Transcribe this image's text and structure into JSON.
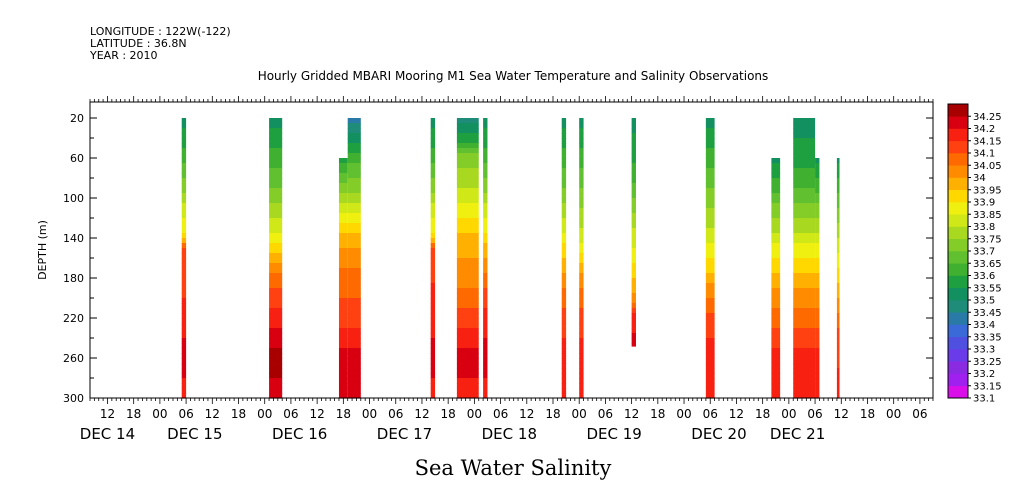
{
  "header": {
    "longitude": "LONGITUDE : 122W(-122)",
    "latitude": "LATITUDE : 36.8N",
    "year": "YEAR : 2010"
  },
  "chart_data": {
    "type": "heatmap",
    "title": "Hourly Gridded MBARI Mooring M1 Sea Water Temperature and Salinity Observations",
    "xlabel": "Sea Water Salinity",
    "ylabel": "DEPTH (m)",
    "y_inverted": true,
    "ylim": [
      300,
      4
    ],
    "y_ticks": [
      20,
      60,
      100,
      140,
      180,
      220,
      260,
      300
    ],
    "xlim_hours": [
      0,
      193
    ],
    "x_hour_ticks": [
      {
        "h": 4,
        "label": "12"
      },
      {
        "h": 10,
        "label": "18"
      },
      {
        "h": 16,
        "label": "00"
      },
      {
        "h": 22,
        "label": "06"
      },
      {
        "h": 28,
        "label": "12"
      },
      {
        "h": 34,
        "label": "18"
      },
      {
        "h": 40,
        "label": "00"
      },
      {
        "h": 46,
        "label": "06"
      },
      {
        "h": 52,
        "label": "12"
      },
      {
        "h": 58,
        "label": "18"
      },
      {
        "h": 64,
        "label": "00"
      },
      {
        "h": 70,
        "label": "06"
      },
      {
        "h": 76,
        "label": "12"
      },
      {
        "h": 82,
        "label": "18"
      },
      {
        "h": 88,
        "label": "00"
      },
      {
        "h": 94,
        "label": "06"
      },
      {
        "h": 100,
        "label": "12"
      },
      {
        "h": 106,
        "label": "18"
      },
      {
        "h": 112,
        "label": "00"
      },
      {
        "h": 118,
        "label": "06"
      },
      {
        "h": 124,
        "label": "12"
      },
      {
        "h": 130,
        "label": "18"
      },
      {
        "h": 136,
        "label": "00"
      },
      {
        "h": 142,
        "label": "06"
      },
      {
        "h": 148,
        "label": "12"
      },
      {
        "h": 154,
        "label": "18"
      },
      {
        "h": 160,
        "label": "00"
      },
      {
        "h": 166,
        "label": "06"
      },
      {
        "h": 172,
        "label": "12"
      },
      {
        "h": 178,
        "label": "18"
      },
      {
        "h": 184,
        "label": "00"
      },
      {
        "h": 190,
        "label": "06"
      }
    ],
    "x_date_labels": [
      {
        "h": 4,
        "label": "DEC 14"
      },
      {
        "h": 24,
        "label": "DEC 15"
      },
      {
        "h": 48,
        "label": "DEC 16"
      },
      {
        "h": 72,
        "label": "DEC 17"
      },
      {
        "h": 96,
        "label": "DEC 18"
      },
      {
        "h": 120,
        "label": "DEC 19"
      },
      {
        "h": 144,
        "label": "DEC 20"
      },
      {
        "h": 162,
        "label": "DEC 21"
      }
    ],
    "legend_levels": [
      "33.1",
      "33.15",
      "33.2",
      "33.25",
      "33.3",
      "33.35",
      "33.4",
      "33.45",
      "33.5",
      "33.55",
      "33.6",
      "33.65",
      "33.7",
      "33.75",
      "33.8",
      "33.85",
      "33.9",
      "33.95",
      "34",
      "34.05",
      "34.1",
      "34.15",
      "34.2",
      "34.25"
    ],
    "legend_colors": [
      "#d90ee8",
      "#a020f0",
      "#8a2be2",
      "#6a3be8",
      "#5050e0",
      "#3a6ad8",
      "#2a7aa8",
      "#1e8c78",
      "#129060",
      "#1fa040",
      "#40b030",
      "#60c030",
      "#84cc28",
      "#a8d820",
      "#d0e818",
      "#f0f010",
      "#ffd800",
      "#ffb000",
      "#ff8c00",
      "#ff6a00",
      "#ff4010",
      "#f82010",
      "#d80010",
      "#a80000"
    ],
    "legend_placement": "right",
    "columns": [
      {
        "start": 21,
        "end": 22,
        "top": 20,
        "bottom": 300,
        "profile": [
          [
            20,
            33.5
          ],
          [
            60,
            33.6
          ],
          [
            100,
            33.75
          ],
          [
            140,
            33.9
          ],
          [
            150,
            34.1
          ],
          [
            180,
            34.1
          ],
          [
            220,
            34.15
          ],
          [
            260,
            34.2
          ],
          [
            300,
            34.15
          ]
        ]
      },
      {
        "start": 41,
        "end": 44,
        "top": 20,
        "bottom": 300,
        "profile": [
          [
            20,
            33.5
          ],
          [
            60,
            33.6
          ],
          [
            100,
            33.7
          ],
          [
            140,
            33.85
          ],
          [
            180,
            34.05
          ],
          [
            220,
            34.15
          ],
          [
            260,
            34.25
          ],
          [
            300,
            34.2
          ]
        ]
      },
      {
        "start": 57,
        "end": 59,
        "top": 60,
        "bottom": 300,
        "profile": [
          [
            60,
            33.55
          ],
          [
            100,
            33.75
          ],
          [
            140,
            33.95
          ],
          [
            180,
            34.05
          ],
          [
            220,
            34.1
          ],
          [
            260,
            34.2
          ],
          [
            300,
            34.2
          ]
        ]
      },
      {
        "start": 59,
        "end": 62,
        "top": 20,
        "bottom": 300,
        "profile": [
          [
            20,
            33.4
          ],
          [
            60,
            33.6
          ],
          [
            100,
            33.75
          ],
          [
            140,
            33.95
          ],
          [
            180,
            34.05
          ],
          [
            220,
            34.1
          ],
          [
            260,
            34.2
          ],
          [
            300,
            34.2
          ]
        ]
      },
      {
        "start": 78,
        "end": 79,
        "top": 20,
        "bottom": 300,
        "profile": [
          [
            20,
            33.5
          ],
          [
            60,
            33.6
          ],
          [
            100,
            33.75
          ],
          [
            140,
            33.9
          ],
          [
            150,
            34.1
          ],
          [
            220,
            34.15
          ],
          [
            260,
            34.2
          ],
          [
            300,
            34.15
          ]
        ]
      },
      {
        "start": 84,
        "end": 89,
        "top": 20,
        "bottom": 300,
        "profile": [
          [
            20,
            33.45
          ],
          [
            40,
            33.55
          ],
          [
            60,
            33.7
          ],
          [
            100,
            33.8
          ],
          [
            140,
            33.95
          ],
          [
            180,
            34.0
          ],
          [
            220,
            34.1
          ],
          [
            260,
            34.2
          ],
          [
            300,
            34.15
          ]
        ]
      },
      {
        "start": 90,
        "end": 91,
        "top": 20,
        "bottom": 300,
        "profile": [
          [
            20,
            33.5
          ],
          [
            60,
            33.6
          ],
          [
            100,
            33.75
          ],
          [
            140,
            33.9
          ],
          [
            180,
            34.05
          ],
          [
            220,
            34.15
          ],
          [
            260,
            34.2
          ],
          [
            300,
            34.15
          ]
        ]
      },
      {
        "start": 108,
        "end": 109,
        "top": 20,
        "bottom": 300,
        "profile": [
          [
            20,
            33.5
          ],
          [
            60,
            33.6
          ],
          [
            100,
            33.7
          ],
          [
            140,
            33.85
          ],
          [
            180,
            34.0
          ],
          [
            220,
            34.1
          ],
          [
            260,
            34.15
          ],
          [
            300,
            34.15
          ]
        ]
      },
      {
        "start": 112,
        "end": 113,
        "top": 20,
        "bottom": 300,
        "profile": [
          [
            20,
            33.5
          ],
          [
            60,
            33.6
          ],
          [
            100,
            33.7
          ],
          [
            140,
            33.8
          ],
          [
            180,
            34.0
          ],
          [
            220,
            34.1
          ],
          [
            260,
            34.15
          ],
          [
            300,
            34.15
          ]
        ]
      },
      {
        "start": 124,
        "end": 125,
        "top": 20,
        "bottom": 248,
        "profile": [
          [
            20,
            33.5
          ],
          [
            80,
            33.6
          ],
          [
            120,
            33.75
          ],
          [
            160,
            33.85
          ],
          [
            200,
            34.0
          ],
          [
            220,
            34.15
          ],
          [
            248,
            34.2
          ]
        ]
      },
      {
        "start": 141,
        "end": 143,
        "top": 20,
        "bottom": 300,
        "profile": [
          [
            20,
            33.5
          ],
          [
            60,
            33.6
          ],
          [
            100,
            33.7
          ],
          [
            140,
            33.8
          ],
          [
            180,
            33.95
          ],
          [
            220,
            34.1
          ],
          [
            260,
            34.15
          ],
          [
            300,
            34.15
          ]
        ]
      },
      {
        "start": 156,
        "end": 158,
        "top": 60,
        "bottom": 300,
        "profile": [
          [
            60,
            33.5
          ],
          [
            100,
            33.65
          ],
          [
            140,
            33.8
          ],
          [
            180,
            33.95
          ],
          [
            220,
            34.05
          ],
          [
            260,
            34.15
          ],
          [
            300,
            34.15
          ]
        ]
      },
      {
        "start": 161,
        "end": 166,
        "top": 20,
        "bottom": 300,
        "profile": [
          [
            20,
            33.5
          ],
          [
            60,
            33.55
          ],
          [
            100,
            33.65
          ],
          [
            140,
            33.8
          ],
          [
            180,
            33.95
          ],
          [
            220,
            34.05
          ],
          [
            260,
            34.15
          ],
          [
            300,
            34.15
          ]
        ]
      },
      {
        "start": 166,
        "end": 167,
        "top": 60,
        "bottom": 300,
        "profile": [
          [
            60,
            33.5
          ],
          [
            100,
            33.65
          ],
          [
            140,
            33.8
          ],
          [
            180,
            33.95
          ],
          [
            220,
            34.05
          ],
          [
            260,
            34.15
          ],
          [
            300,
            34.15
          ]
        ]
      },
      {
        "start": 171,
        "end": 171.6,
        "top": 60,
        "bottom": 300,
        "profile": [
          [
            60,
            33.5
          ],
          [
            120,
            33.7
          ],
          [
            180,
            33.9
          ],
          [
            240,
            34.1
          ],
          [
            300,
            34.15
          ]
        ]
      }
    ]
  }
}
